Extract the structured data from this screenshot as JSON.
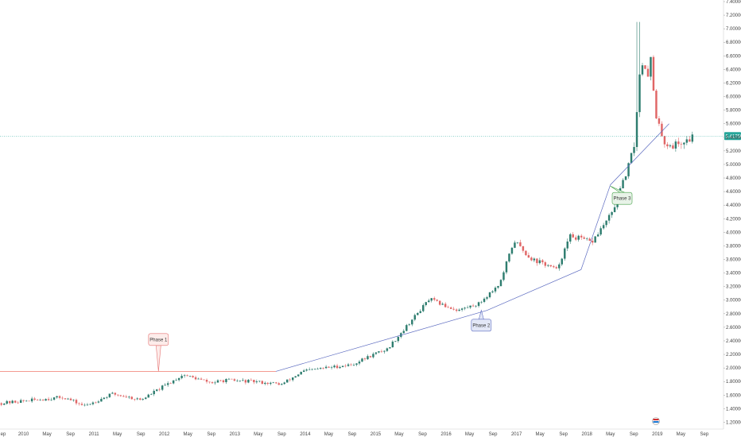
{
  "chart_data": {
    "type": "candlestick",
    "title": "",
    "xlabel": "",
    "ylabel": "",
    "ylim": [
      1.1,
      7.4
    ],
    "xlim": [
      "2009-09",
      "2019-12"
    ],
    "x_tick_labels": [
      "ep",
      "2010",
      "May",
      "Sep",
      "2011",
      "May",
      "Sep",
      "2012",
      "May",
      "Sep",
      "2013",
      "May",
      "Sep",
      "2014",
      "May",
      "Sep",
      "2015",
      "May",
      "Sep",
      "2016",
      "May",
      "Sep",
      "2017",
      "May",
      "Sep",
      "2018",
      "May",
      "Sep",
      "2019",
      "May",
      "Sep"
    ],
    "y_tick_labels": [
      "1.20000",
      "1.40000",
      "1.60000",
      "1.80000",
      "2.00000",
      "2.20000",
      "2.40000",
      "2.60000",
      "2.80000",
      "3.00000",
      "3.20000",
      "3.40000",
      "3.60000",
      "3.80000",
      "4.00000",
      "4.20000",
      "4.40000",
      "4.60000",
      "4.80000",
      "5.00000",
      "5.20000",
      "5.40000",
      "5.60000",
      "5.80000",
      "6.00000",
      "6.20000",
      "6.40000",
      "6.60000",
      "6.80000",
      "7.00000",
      "7.20000",
      "7.40000"
    ],
    "y_tick_values": [
      1.2,
      1.4,
      1.6,
      1.8,
      2.0,
      2.2,
      2.4,
      2.6,
      2.8,
      3.0,
      3.2,
      3.4,
      3.6,
      3.8,
      4.0,
      4.2,
      4.4,
      4.6,
      4.8,
      5.0,
      5.2,
      5.4,
      5.6,
      5.8,
      6.0,
      6.2,
      6.4,
      6.6,
      6.8,
      7.0,
      7.2,
      7.4
    ],
    "last_price_label": "5.41750",
    "last_price": 5.4175,
    "path_t": [
      0.0,
      0.4,
      0.9,
      1.2,
      1.6,
      2.0,
      2.6,
      3.0,
      3.2,
      3.6,
      4.0,
      4.3,
      4.6,
      5.0,
      5.3,
      5.5,
      5.8,
      6.1,
      6.3,
      6.5,
      6.8,
      7.1,
      7.3,
      7.5,
      7.6,
      7.7,
      7.9,
      8.1,
      8.4,
      8.7,
      8.9,
      9.0,
      9.1,
      9.2,
      9.25,
      9.3,
      9.45,
      9.55,
      9.75,
      9.85
    ],
    "path_v": [
      1.48,
      1.52,
      1.57,
      1.44,
      1.62,
      1.53,
      1.9,
      1.78,
      1.82,
      1.8,
      1.76,
      1.95,
      2.0,
      2.05,
      2.2,
      2.28,
      2.65,
      3.02,
      2.92,
      2.85,
      2.95,
      3.25,
      3.88,
      3.65,
      3.58,
      3.55,
      3.45,
      3.95,
      3.85,
      4.3,
      4.9,
      5.25,
      6.55,
      6.35,
      6.6,
      5.7,
      5.3,
      5.28,
      5.35,
      5.42
    ],
    "candle_count": 250,
    "horizontal_level": {
      "value": 1.95,
      "from": "2009-09",
      "to": "2013-08",
      "color": "#f28b82"
    },
    "trendline_points": [
      {
        "x": "2013-08",
        "y": 1.95
      },
      {
        "x": "2016-08",
        "y": 2.85
      },
      {
        "x": "2017-12",
        "y": 3.45
      },
      {
        "x": "2018-05",
        "y": 4.7
      },
      {
        "x": "2019-03",
        "y": 5.6
      }
    ],
    "annotations": [
      {
        "text": "Phase 1",
        "x": "2011-12",
        "y": 2.42,
        "anchor_x": "2011-12",
        "anchor_y": 1.95,
        "color": "#e57373",
        "bg": "#fdecea"
      },
      {
        "text": "Phase 2",
        "x": "2016-07",
        "y": 2.63,
        "anchor_x": "2016-07",
        "anchor_y": 2.85,
        "color": "#5c6bc0",
        "bg": "#e3e8f7"
      },
      {
        "text": "Phase 3",
        "x": "2018-07",
        "y": 4.5,
        "anchor_x": "2018-05",
        "anchor_y": 4.68,
        "color": "#43a047",
        "bg": "#e8f3e8"
      }
    ],
    "colors": {
      "up": "#2e7d6f",
      "down": "#e06666",
      "trend": "#5c6bc0",
      "last_price": "#26a69a"
    }
  }
}
